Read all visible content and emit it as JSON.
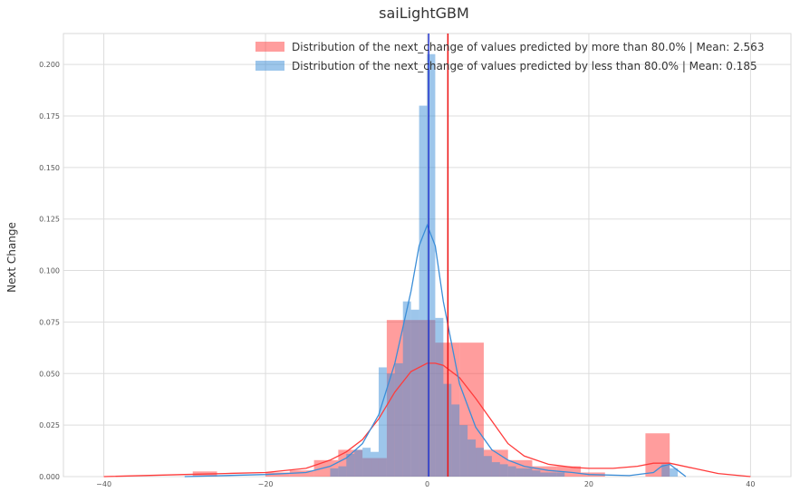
{
  "chart_data": {
    "type": "histogram+kde",
    "title": "saiLightGBM",
    "xlabel": "",
    "ylabel": "Next Change",
    "xlim": [
      -45,
      45
    ],
    "ylim": [
      0,
      0.215
    ],
    "x_ticks": [
      -40,
      -20,
      0,
      20,
      40
    ],
    "x_tick_labels": [
      "−40",
      "−20",
      "0",
      "20",
      "40"
    ],
    "y_ticks": [
      0.0,
      0.025,
      0.05,
      0.075,
      0.1,
      0.125,
      0.15,
      0.175,
      0.2
    ],
    "y_tick_labels": [
      "0.000",
      "0.025",
      "0.050",
      "0.075",
      "0.100",
      "0.125",
      "0.150",
      "0.175",
      "0.200"
    ],
    "grid": true,
    "legend_position": "top-right",
    "series": [
      {
        "name": "Distribution of the next_change of values predicted by more than 80.0% | Mean: 2.563",
        "color": "#ff3b3b",
        "mean": 2.563,
        "bins": [
          {
            "x0": -29,
            "x1": -26,
            "y": 0.0025
          },
          {
            "x0": -20,
            "x1": -17,
            "y": 0.002
          },
          {
            "x0": -17,
            "x1": -14,
            "y": 0.003
          },
          {
            "x0": -14,
            "x1": -11,
            "y": 0.008
          },
          {
            "x0": -11,
            "x1": -8,
            "y": 0.013
          },
          {
            "x0": -8,
            "x1": -5,
            "y": 0.009
          },
          {
            "x0": -5,
            "x1": -2,
            "y": 0.076
          },
          {
            "x0": -2,
            "x1": 1,
            "y": 0.076
          },
          {
            "x0": 1,
            "x1": 4,
            "y": 0.065
          },
          {
            "x0": 4,
            "x1": 7,
            "y": 0.065
          },
          {
            "x0": 7,
            "x1": 10,
            "y": 0.013
          },
          {
            "x0": 10,
            "x1": 13,
            "y": 0.008
          },
          {
            "x0": 13,
            "x1": 16,
            "y": 0.005
          },
          {
            "x0": 16,
            "x1": 19,
            "y": 0.005
          },
          {
            "x0": 19,
            "x1": 22,
            "y": 0.002
          },
          {
            "x0": 27,
            "x1": 30,
            "y": 0.021
          }
        ],
        "kde": {
          "x": [
            -40,
            -30,
            -25,
            -20,
            -15,
            -12,
            -10,
            -8,
            -6,
            -4,
            -2,
            0,
            1,
            2,
            4,
            6,
            8,
            10,
            12,
            15,
            18,
            20,
            23,
            26,
            28,
            30,
            33,
            36,
            40
          ],
          "y": [
            0.0,
            0.001,
            0.0015,
            0.002,
            0.004,
            0.008,
            0.012,
            0.018,
            0.028,
            0.041,
            0.051,
            0.055,
            0.055,
            0.054,
            0.048,
            0.038,
            0.027,
            0.016,
            0.01,
            0.006,
            0.0045,
            0.004,
            0.004,
            0.005,
            0.0065,
            0.0065,
            0.004,
            0.0015,
            0.0
          ]
        }
      },
      {
        "name": "Distribution of the next_change of values predicted by less than 80.0% | Mean: 0.185",
        "color": "#3b8ed8",
        "mean": 0.185,
        "bins": [
          {
            "x0": -12,
            "x1": -11,
            "y": 0.004
          },
          {
            "x0": -11,
            "x1": -10,
            "y": 0.005
          },
          {
            "x0": -10,
            "x1": -9,
            "y": 0.011
          },
          {
            "x0": -9,
            "x1": -8,
            "y": 0.013
          },
          {
            "x0": -8,
            "x1": -7,
            "y": 0.014
          },
          {
            "x0": -7,
            "x1": -6,
            "y": 0.012
          },
          {
            "x0": -6,
            "x1": -5,
            "y": 0.053
          },
          {
            "x0": -5,
            "x1": -4,
            "y": 0.05
          },
          {
            "x0": -4,
            "x1": -3,
            "y": 0.055
          },
          {
            "x0": -3,
            "x1": -2,
            "y": 0.085
          },
          {
            "x0": -2,
            "x1": -1,
            "y": 0.081
          },
          {
            "x0": -1,
            "x1": 0,
            "y": 0.18
          },
          {
            "x0": 0,
            "x1": 1,
            "y": 0.205
          },
          {
            "x0": 1,
            "x1": 2,
            "y": 0.077
          },
          {
            "x0": 2,
            "x1": 3,
            "y": 0.045
          },
          {
            "x0": 3,
            "x1": 4,
            "y": 0.035
          },
          {
            "x0": 4,
            "x1": 5,
            "y": 0.025
          },
          {
            "x0": 5,
            "x1": 6,
            "y": 0.018
          },
          {
            "x0": 6,
            "x1": 7,
            "y": 0.014
          },
          {
            "x0": 7,
            "x1": 8,
            "y": 0.01
          },
          {
            "x0": 8,
            "x1": 9,
            "y": 0.007
          },
          {
            "x0": 9,
            "x1": 10,
            "y": 0.006
          },
          {
            "x0": 10,
            "x1": 11,
            "y": 0.005
          },
          {
            "x0": 11,
            "x1": 12,
            "y": 0.004
          },
          {
            "x0": 12,
            "x1": 13,
            "y": 0.004
          },
          {
            "x0": 13,
            "x1": 14,
            "y": 0.003
          },
          {
            "x0": 14,
            "x1": 15,
            "y": 0.002
          },
          {
            "x0": 15,
            "x1": 16,
            "y": 0.002
          },
          {
            "x0": 16,
            "x1": 17,
            "y": 0.002
          },
          {
            "x0": 29,
            "x1": 30,
            "y": 0.006
          },
          {
            "x0": 30,
            "x1": 31,
            "y": 0.004
          }
        ],
        "kde": {
          "x": [
            -30,
            -20,
            -15,
            -12,
            -10,
            -8,
            -6,
            -4,
            -2,
            -1,
            0,
            1,
            2,
            4,
            6,
            8,
            10,
            12,
            15,
            18,
            20,
            25,
            28,
            29,
            30,
            31,
            32
          ],
          "y": [
            0.0,
            0.001,
            0.002,
            0.005,
            0.009,
            0.016,
            0.03,
            0.055,
            0.09,
            0.112,
            0.122,
            0.112,
            0.085,
            0.045,
            0.024,
            0.013,
            0.008,
            0.005,
            0.003,
            0.002,
            0.001,
            0.0005,
            0.002,
            0.005,
            0.006,
            0.003,
            0.0
          ]
        }
      }
    ]
  }
}
